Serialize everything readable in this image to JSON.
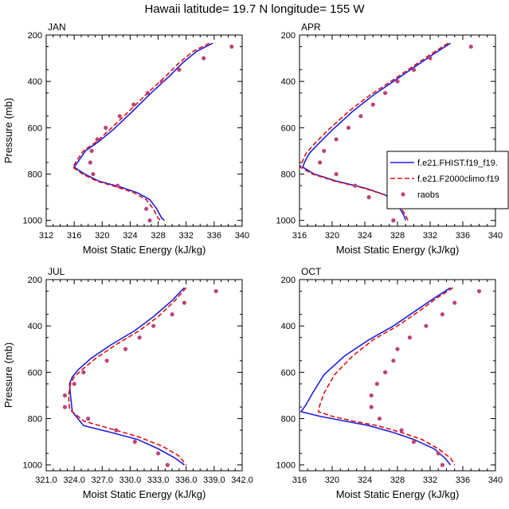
{
  "title": "Hawaii  latitude= 19.7 N longitude= 155 W",
  "legend": {
    "entries": [
      {
        "label": "f.e21.FHIST.f19_f19.",
        "style": "solid",
        "color": "#1f1fe0"
      },
      {
        "label": "f.e21.F2000climo.f19",
        "style": "dashed",
        "color": "#e01010"
      },
      {
        "label": "raobs",
        "style": "dots",
        "color": "#b8457a"
      }
    ]
  },
  "chart_data": [
    {
      "type": "line",
      "panel_label": "JAN",
      "xlabel": "Moist Static Energy (kJ/kg)",
      "ylabel": "Pressure (mb)",
      "xlim": [
        312,
        340
      ],
      "ylim": [
        200,
        1025
      ],
      "y_inverted": true,
      "xticks": [
        312,
        316,
        320,
        324,
        328,
        332,
        336,
        340
      ],
      "xtick_labels": [
        "312",
        "316",
        "320",
        "324",
        "328",
        "332",
        "336",
        "340"
      ],
      "yticks": [
        200,
        400,
        600,
        800,
        1000
      ],
      "ytick_labels": [
        "200",
        "400",
        "600",
        "800",
        "1000"
      ],
      "series": [
        {
          "name": "f.e21.FHIST.f19_f19.",
          "style": "solid",
          "points": [
            [
              335.8,
              235
            ],
            [
              333.5,
              270
            ],
            [
              331.5,
              320
            ],
            [
              329.5,
              380
            ],
            [
              327.0,
              450
            ],
            [
              324.3,
              530
            ],
            [
              321.5,
              610
            ],
            [
              319.5,
              660
            ],
            [
              317.6,
              700
            ],
            [
              316.7,
              740
            ],
            [
              316.0,
              770
            ],
            [
              317.5,
              800
            ],
            [
              319.5,
              830
            ],
            [
              322.5,
              855
            ],
            [
              325.0,
              880
            ],
            [
              326.8,
              910
            ],
            [
              327.8,
              950
            ],
            [
              328.5,
              990
            ],
            [
              328.9,
              1000
            ]
          ]
        },
        {
          "name": "f.e21.F2000climo.f19",
          "style": "dashed",
          "points": [
            [
              335.3,
              235
            ],
            [
              333.0,
              270
            ],
            [
              331.0,
              320
            ],
            [
              329.0,
              380
            ],
            [
              326.5,
              450
            ],
            [
              323.8,
              530
            ],
            [
              321.0,
              610
            ],
            [
              319.2,
              660
            ],
            [
              317.3,
              700
            ],
            [
              316.4,
              740
            ],
            [
              315.8,
              770
            ],
            [
              317.2,
              800
            ],
            [
              319.2,
              830
            ],
            [
              322.0,
              855
            ],
            [
              324.5,
              880
            ],
            [
              326.3,
              910
            ],
            [
              327.3,
              950
            ],
            [
              328.0,
              990
            ],
            [
              328.3,
              1000
            ]
          ]
        },
        {
          "name": "raobs",
          "style": "dots",
          "points": [
            [
              338.5,
              250
            ],
            [
              334.5,
              300
            ],
            [
              331.0,
              350
            ],
            [
              328.5,
              400
            ],
            [
              326.5,
              450
            ],
            [
              324.5,
              500
            ],
            [
              322.5,
              550
            ],
            [
              320.5,
              600
            ],
            [
              319.3,
              650
            ],
            [
              318.5,
              700
            ],
            [
              318.3,
              750
            ],
            [
              318.7,
              800
            ],
            [
              322.2,
              850
            ],
            [
              326.3,
              950
            ],
            [
              326.8,
              1000
            ]
          ]
        }
      ]
    },
    {
      "type": "line",
      "panel_label": "APR",
      "xlabel": "Moist Static Energy (kJ/kg)",
      "ylabel": "",
      "xlim": [
        316,
        340
      ],
      "ylim": [
        200,
        1025
      ],
      "y_inverted": true,
      "xticks": [
        316,
        320,
        324,
        328,
        332,
        336,
        340
      ],
      "xtick_labels": [
        "316",
        "320",
        "324",
        "328",
        "332",
        "336",
        "340"
      ],
      "yticks": [
        200,
        400,
        600,
        800,
        1000
      ],
      "ytick_labels": [
        "200",
        "400",
        "600",
        "800",
        "1000"
      ],
      "series": [
        {
          "name": "f.e21.FHIST.f19_f19.",
          "style": "solid",
          "points": [
            [
              334.5,
              235
            ],
            [
              332.5,
              280
            ],
            [
              330.0,
              340
            ],
            [
              327.5,
              400
            ],
            [
              325.0,
              460
            ],
            [
              322.5,
              530
            ],
            [
              320.0,
              610
            ],
            [
              318.3,
              670
            ],
            [
              317.2,
              710
            ],
            [
              316.6,
              750
            ],
            [
              316.4,
              770
            ],
            [
              317.8,
              800
            ],
            [
              320.5,
              830
            ],
            [
              324.0,
              860
            ],
            [
              326.5,
              890
            ],
            [
              328.0,
              930
            ],
            [
              328.8,
              980
            ],
            [
              329.0,
              1000
            ]
          ]
        },
        {
          "name": "f.e21.F2000climo.f19",
          "style": "dashed",
          "points": [
            [
              334.2,
              235
            ],
            [
              332.2,
              280
            ],
            [
              329.7,
              340
            ],
            [
              327.2,
              400
            ],
            [
              324.6,
              460
            ],
            [
              322.0,
              530
            ],
            [
              319.5,
              610
            ],
            [
              317.8,
              670
            ],
            [
              316.8,
              710
            ],
            [
              316.3,
              750
            ],
            [
              316.1,
              770
            ],
            [
              317.6,
              800
            ],
            [
              320.3,
              830
            ],
            [
              323.8,
              860
            ],
            [
              326.5,
              890
            ],
            [
              328.2,
              930
            ],
            [
              329.0,
              980
            ],
            [
              329.3,
              1000
            ]
          ]
        },
        {
          "name": "raobs",
          "style": "dots",
          "points": [
            [
              337.0,
              250
            ],
            [
              332.0,
              300
            ],
            [
              330.0,
              350
            ],
            [
              328.0,
              400
            ],
            [
              326.5,
              450
            ],
            [
              325.0,
              500
            ],
            [
              323.5,
              550
            ],
            [
              322.0,
              600
            ],
            [
              320.5,
              650
            ],
            [
              319.0,
              700
            ],
            [
              318.5,
              750
            ],
            [
              320.5,
              800
            ],
            [
              322.8,
              850
            ],
            [
              324.5,
              900
            ],
            [
              327.5,
              1000
            ]
          ]
        }
      ]
    },
    {
      "type": "line",
      "panel_label": "JUL",
      "xlabel": "Moist Static Energy (kJ/kg)",
      "ylabel": "Pressure (mb)",
      "xlim": [
        321,
        342
      ],
      "ylim": [
        200,
        1025
      ],
      "y_inverted": true,
      "xticks": [
        321,
        324,
        327,
        330,
        333,
        336,
        339,
        342
      ],
      "xtick_labels": [
        "321.0",
        "324.0",
        "327.0",
        "330.0",
        "333.0",
        "336.0",
        "339.0",
        "342.0"
      ],
      "yticks": [
        200,
        400,
        600,
        800,
        1000
      ],
      "ytick_labels": [
        "200",
        "400",
        "600",
        "800",
        "1000"
      ],
      "series": [
        {
          "name": "f.e21.FHIST.f19_f19.",
          "style": "solid",
          "points": [
            [
              335.8,
              235
            ],
            [
              334.5,
              290
            ],
            [
              332.5,
              360
            ],
            [
              330.5,
              420
            ],
            [
              328.0,
              480
            ],
            [
              325.8,
              540
            ],
            [
              324.4,
              590
            ],
            [
              323.8,
              620
            ],
            [
              323.5,
              650
            ],
            [
              323.6,
              700
            ],
            [
              323.8,
              770
            ],
            [
              325.0,
              830
            ],
            [
              328.0,
              860
            ],
            [
              330.8,
              890
            ],
            [
              333.0,
              930
            ],
            [
              334.8,
              970
            ],
            [
              335.8,
              1000
            ]
          ]
        },
        {
          "name": "f.e21.F2000climo.f19",
          "style": "dashed",
          "points": [
            [
              336.0,
              235
            ],
            [
              334.8,
              290
            ],
            [
              333.0,
              360
            ],
            [
              331.0,
              420
            ],
            [
              328.5,
              480
            ],
            [
              326.3,
              540
            ],
            [
              324.8,
              590
            ],
            [
              324.0,
              620
            ],
            [
              323.6,
              650
            ],
            [
              323.4,
              700
            ],
            [
              323.5,
              760
            ],
            [
              325.0,
              810
            ],
            [
              328.0,
              845
            ],
            [
              331.0,
              880
            ],
            [
              333.5,
              920
            ],
            [
              335.2,
              960
            ],
            [
              336.0,
              1000
            ]
          ]
        },
        {
          "name": "raobs",
          "style": "dots",
          "points": [
            [
              339.2,
              250
            ],
            [
              335.8,
              300
            ],
            [
              334.5,
              350
            ],
            [
              332.5,
              400
            ],
            [
              331.0,
              450
            ],
            [
              329.5,
              500
            ],
            [
              327.5,
              550
            ],
            [
              325.0,
              600
            ],
            [
              324.0,
              650
            ],
            [
              323.0,
              700
            ],
            [
              323.0,
              750
            ],
            [
              325.5,
              800
            ],
            [
              328.5,
              850
            ],
            [
              330.5,
              900
            ],
            [
              333.0,
              950
            ],
            [
              334.0,
              1000
            ]
          ]
        }
      ]
    },
    {
      "type": "line",
      "panel_label": "OCT",
      "xlabel": "Moist Static Energy (kJ/kg)",
      "ylabel": "",
      "xlim": [
        316,
        340
      ],
      "ylim": [
        200,
        1025
      ],
      "y_inverted": true,
      "xticks": [
        316,
        320,
        324,
        328,
        332,
        336,
        340
      ],
      "xtick_labels": [
        "316",
        "320",
        "324",
        "328",
        "332",
        "336",
        "340"
      ],
      "yticks": [
        200,
        400,
        600,
        800,
        1000
      ],
      "ytick_labels": [
        "200",
        "400",
        "600",
        "800",
        "1000"
      ],
      "series": [
        {
          "name": "f.e21.FHIST.f19_f19.",
          "style": "solid",
          "points": [
            [
              334.5,
              235
            ],
            [
              332.5,
              280
            ],
            [
              330.0,
              340
            ],
            [
              327.5,
              400
            ],
            [
              324.5,
              460
            ],
            [
              321.5,
              530
            ],
            [
              319.0,
              610
            ],
            [
              317.6,
              690
            ],
            [
              316.8,
              740
            ],
            [
              316.2,
              770
            ],
            [
              318.5,
              790
            ],
            [
              321.5,
              810
            ],
            [
              324.5,
              830
            ],
            [
              327.5,
              860
            ],
            [
              330.0,
              890
            ],
            [
              332.5,
              930
            ],
            [
              333.8,
              970
            ],
            [
              334.5,
              1000
            ]
          ]
        },
        {
          "name": "f.e21.F2000climo.f19",
          "style": "dashed",
          "points": [
            [
              334.8,
              235
            ],
            [
              332.8,
              280
            ],
            [
              330.5,
              340
            ],
            [
              328.0,
              400
            ],
            [
              325.0,
              460
            ],
            [
              322.5,
              530
            ],
            [
              320.3,
              610
            ],
            [
              319.0,
              690
            ],
            [
              318.5,
              740
            ],
            [
              318.3,
              770
            ],
            [
              320.0,
              790
            ],
            [
              322.5,
              810
            ],
            [
              325.5,
              830
            ],
            [
              328.5,
              860
            ],
            [
              331.0,
              890
            ],
            [
              333.0,
              930
            ],
            [
              334.5,
              970
            ],
            [
              335.0,
              1000
            ]
          ]
        },
        {
          "name": "raobs",
          "style": "dots",
          "points": [
            [
              338.0,
              250
            ],
            [
              335.0,
              300
            ],
            [
              333.5,
              350
            ],
            [
              331.5,
              400
            ],
            [
              329.5,
              450
            ],
            [
              328.0,
              500
            ],
            [
              327.5,
              550
            ],
            [
              326.5,
              600
            ],
            [
              325.5,
              650
            ],
            [
              324.8,
              700
            ],
            [
              324.8,
              750
            ],
            [
              325.8,
              800
            ],
            [
              328.5,
              850
            ],
            [
              330.0,
              900
            ],
            [
              333.0,
              950
            ],
            [
              333.5,
              1000
            ]
          ]
        }
      ]
    }
  ]
}
